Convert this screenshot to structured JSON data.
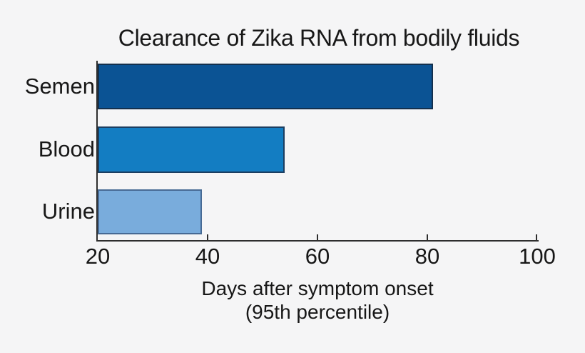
{
  "page": {
    "background": "#f5f5f6",
    "text_color": "#171717",
    "axis_color": "#2e2e2e"
  },
  "chart_data": {
    "type": "bar",
    "orientation": "horizontal",
    "title": "Clearance of Zika RNA from bodily fluids",
    "categories": [
      "Semen",
      "Blood",
      "Urine"
    ],
    "values": [
      81,
      54,
      39
    ],
    "xlabel_line1": "Days after symptom onset",
    "xlabel_line2": "(95th percentile)",
    "xlim": [
      20,
      100
    ],
    "xticks": [
      "20",
      "40",
      "60",
      "80",
      "100"
    ],
    "grid": false,
    "legend": "none",
    "bar_colors": [
      {
        "fill": "#0b5394",
        "edge": "#14304d"
      },
      {
        "fill": "#137dc2",
        "edge": "#1b3e61"
      },
      {
        "fill": "#79acdc",
        "edge": "#476a94"
      }
    ]
  }
}
